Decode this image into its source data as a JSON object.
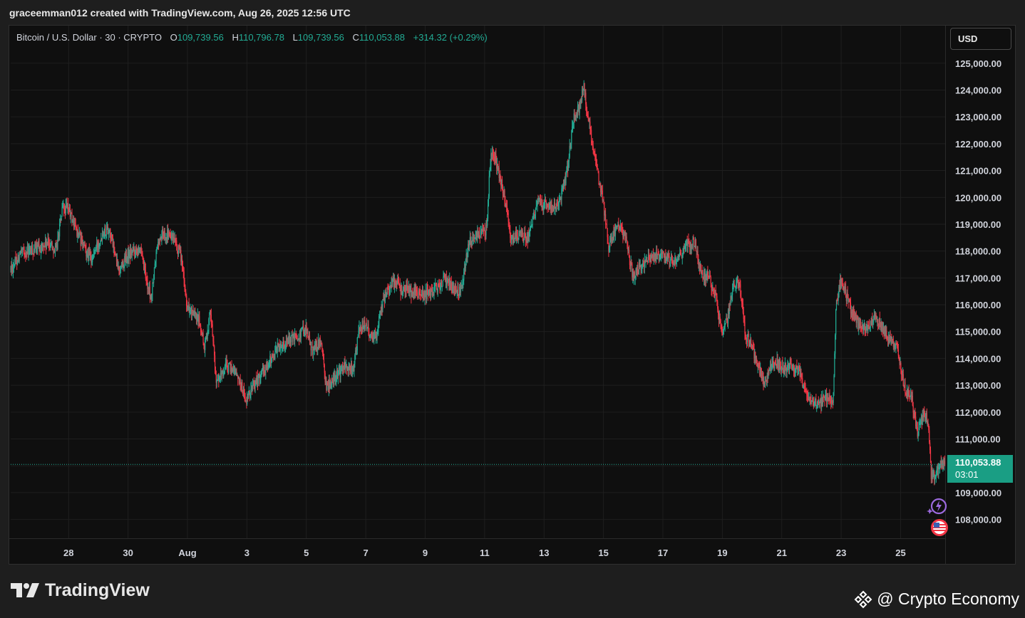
{
  "caption": "graceemman012 created with TradingView.com, Aug 26, 2025 12:56 UTC",
  "legend": {
    "symbol": "Bitcoin / U.S. Dollar · 30 · CRYPTO",
    "o_label": "O",
    "o_value": "109,739.56",
    "h_label": "H",
    "h_value": "110,796.78",
    "l_label": "L",
    "l_value": "109,739.56",
    "c_label": "C",
    "c_value": "110,053.88",
    "change": "+314.32 (+0.29%)"
  },
  "currency_button": "USD",
  "last_price": {
    "price": "110,053.88",
    "countdown": "03:01"
  },
  "brand": "TradingView",
  "watermark": "@ Crypto Economy",
  "icons": {
    "brand_logo": "tradingview-logo-icon",
    "watermark_logo": "binance-diamond-icon",
    "event_1": "lightning-event-icon",
    "event_2": "us-flag-icon"
  },
  "colors": {
    "up": "#22ab94",
    "down": "#f23645",
    "background": "#0f0f0f",
    "grid": "#1f1f1f",
    "axis_text": "#d1d4dc",
    "price_tag": "#1a9e84"
  },
  "chart_data": {
    "type": "candlestick",
    "timeframe": "30",
    "yticks": [
      "108,000.00",
      "109,000.00",
      "110,000.00",
      "111,000.00",
      "112,000.00",
      "113,000.00",
      "114,000.00",
      "115,000.00",
      "116,000.00",
      "117,000.00",
      "118,000.00",
      "119,000.00",
      "120,000.00",
      "121,000.00",
      "122,000.00",
      "123,000.00",
      "124,000.00",
      "125,000.00"
    ],
    "ytick_values": [
      108000,
      109000,
      110000,
      111000,
      112000,
      113000,
      114000,
      115000,
      116000,
      117000,
      118000,
      119000,
      120000,
      121000,
      122000,
      123000,
      124000,
      125000
    ],
    "ylim": [
      107300,
      126400
    ],
    "xticks": [
      "28",
      "30",
      "Aug",
      "3",
      "5",
      "7",
      "9",
      "11",
      "13",
      "15",
      "17",
      "19",
      "21",
      "23",
      "25"
    ],
    "xtick_days": [
      -4,
      -2,
      0,
      2,
      4,
      6,
      8,
      10,
      12,
      14,
      16,
      18,
      20,
      22,
      24
    ],
    "xlim_days": [
      -5.95,
      25.5
    ],
    "last_close": 110053.88,
    "price_path": [
      [
        -5.95,
        117300
      ],
      [
        -5.6,
        117900
      ],
      [
        -5.0,
        118100
      ],
      [
        -4.6,
        118300
      ],
      [
        -4.4,
        118000
      ],
      [
        -4.2,
        119500
      ],
      [
        -4.0,
        119600
      ],
      [
        -3.8,
        119000
      ],
      [
        -3.5,
        118200
      ],
      [
        -3.2,
        117700
      ],
      [
        -2.8,
        118800
      ],
      [
        -2.6,
        118800
      ],
      [
        -2.3,
        117300
      ],
      [
        -2.0,
        117800
      ],
      [
        -1.6,
        118200
      ],
      [
        -1.4,
        117100
      ],
      [
        -1.2,
        116200
      ],
      [
        -1.0,
        118200
      ],
      [
        -0.8,
        118700
      ],
      [
        -0.5,
        118500
      ],
      [
        -0.2,
        117800
      ],
      [
        0.0,
        116000
      ],
      [
        0.2,
        115600
      ],
      [
        0.4,
        115400
      ],
      [
        0.6,
        114400
      ],
      [
        0.8,
        115800
      ],
      [
        1.0,
        113000
      ],
      [
        1.3,
        113700
      ],
      [
        1.6,
        113600
      ],
      [
        1.9,
        112800
      ],
      [
        2.0,
        112300
      ],
      [
        2.2,
        113000
      ],
      [
        2.5,
        113400
      ],
      [
        2.8,
        113900
      ],
      [
        3.1,
        114500
      ],
      [
        3.5,
        114700
      ],
      [
        3.8,
        114900
      ],
      [
        4.0,
        115200
      ],
      [
        4.2,
        114300
      ],
      [
        4.5,
        114600
      ],
      [
        4.7,
        112900
      ],
      [
        5.0,
        113300
      ],
      [
        5.3,
        113700
      ],
      [
        5.6,
        113600
      ],
      [
        5.8,
        115100
      ],
      [
        6.0,
        115300
      ],
      [
        6.2,
        114800
      ],
      [
        6.4,
        115000
      ],
      [
        6.6,
        116100
      ],
      [
        6.9,
        116900
      ],
      [
        7.2,
        116600
      ],
      [
        7.5,
        116500
      ],
      [
        8.0,
        116400
      ],
      [
        8.4,
        116600
      ],
      [
        8.7,
        117000
      ],
      [
        9.0,
        116600
      ],
      [
        9.2,
        116500
      ],
      [
        9.5,
        118300
      ],
      [
        9.8,
        118600
      ],
      [
        10.1,
        118800
      ],
      [
        10.2,
        121300
      ],
      [
        10.3,
        121800
      ],
      [
        10.5,
        120900
      ],
      [
        10.7,
        120000
      ],
      [
        10.9,
        118400
      ],
      [
        11.2,
        118600
      ],
      [
        11.5,
        118500
      ],
      [
        11.8,
        119800
      ],
      [
        12.2,
        119700
      ],
      [
        12.5,
        119700
      ],
      [
        12.8,
        121000
      ],
      [
        13.0,
        122900
      ],
      [
        13.2,
        123300
      ],
      [
        13.35,
        124200
      ],
      [
        13.6,
        122300
      ],
      [
        13.8,
        121000
      ],
      [
        14.0,
        119900
      ],
      [
        14.2,
        118100
      ],
      [
        14.4,
        118800
      ],
      [
        14.6,
        119000
      ],
      [
        14.8,
        118300
      ],
      [
        15.0,
        117100
      ],
      [
        15.4,
        117600
      ],
      [
        15.8,
        117800
      ],
      [
        16.2,
        117700
      ],
      [
        16.5,
        117700
      ],
      [
        16.8,
        118200
      ],
      [
        17.1,
        118300
      ],
      [
        17.3,
        117200
      ],
      [
        17.6,
        116900
      ],
      [
        17.8,
        116300
      ],
      [
        18.0,
        114900
      ],
      [
        18.2,
        115500
      ],
      [
        18.4,
        116800
      ],
      [
        18.6,
        116800
      ],
      [
        18.8,
        114900
      ],
      [
        19.1,
        114200
      ],
      [
        19.4,
        113100
      ],
      [
        19.8,
        113900
      ],
      [
        20.1,
        113600
      ],
      [
        20.3,
        113800
      ],
      [
        20.6,
        113500
      ],
      [
        20.9,
        112400
      ],
      [
        21.2,
        112300
      ],
      [
        21.5,
        112500
      ],
      [
        21.75,
        112400
      ],
      [
        21.85,
        116000
      ],
      [
        22.0,
        117000
      ],
      [
        22.2,
        116300
      ],
      [
        22.4,
        115700
      ],
      [
        22.6,
        115300
      ],
      [
        22.9,
        115200
      ],
      [
        23.1,
        115500
      ],
      [
        23.3,
        115300
      ],
      [
        23.6,
        114700
      ],
      [
        23.9,
        114500
      ],
      [
        24.05,
        113400
      ],
      [
        24.2,
        112700
      ],
      [
        24.4,
        112500
      ],
      [
        24.6,
        111100
      ],
      [
        24.8,
        112000
      ],
      [
        24.95,
        111700
      ],
      [
        25.05,
        109600
      ],
      [
        25.2,
        109600
      ],
      [
        25.35,
        110000
      ],
      [
        25.5,
        110053.88
      ]
    ]
  }
}
